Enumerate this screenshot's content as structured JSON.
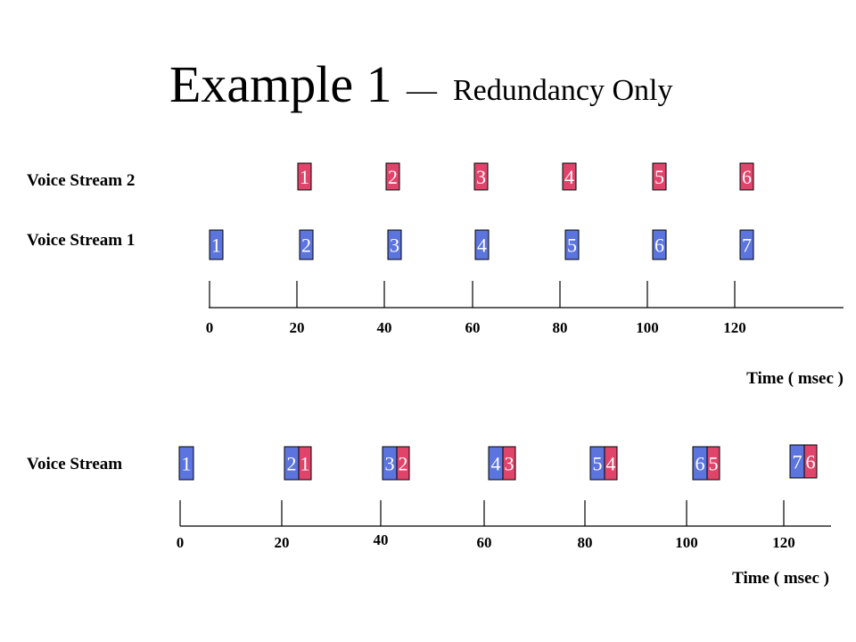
{
  "title": {
    "main": "Example 1",
    "dash": "—",
    "sub": "Redundancy Only"
  },
  "colors": {
    "primary": "#5b74de",
    "redundant": "#e0446a",
    "outline": "#000000",
    "text": "#ffffff"
  },
  "top_diagram": {
    "labels": {
      "stream2": "Voice Stream 2",
      "stream1": "Voice Stream 1"
    },
    "stream2_packets": [
      "1",
      "2",
      "3",
      "4",
      "5",
      "6"
    ],
    "stream1_packets": [
      "1",
      "2",
      "3",
      "4",
      "5",
      "6",
      "7"
    ],
    "ticks": [
      "0",
      "20",
      "40",
      "60",
      "80",
      "100",
      "120"
    ],
    "axis_title": "Time ( msec )"
  },
  "bottom_diagram": {
    "label": "Voice Stream",
    "packets": [
      {
        "primary": "1"
      },
      {
        "primary": "2",
        "redundant": "1"
      },
      {
        "primary": "3",
        "redundant": "2"
      },
      {
        "primary": "4",
        "redundant": "3"
      },
      {
        "primary": "5",
        "redundant": "4"
      },
      {
        "primary": "6",
        "redundant": "5"
      },
      {
        "primary": "7",
        "redundant": "6"
      }
    ],
    "ticks": [
      "0",
      "20",
      "40",
      "60",
      "80",
      "100",
      "120"
    ],
    "axis_title": "Time ( msec )"
  }
}
